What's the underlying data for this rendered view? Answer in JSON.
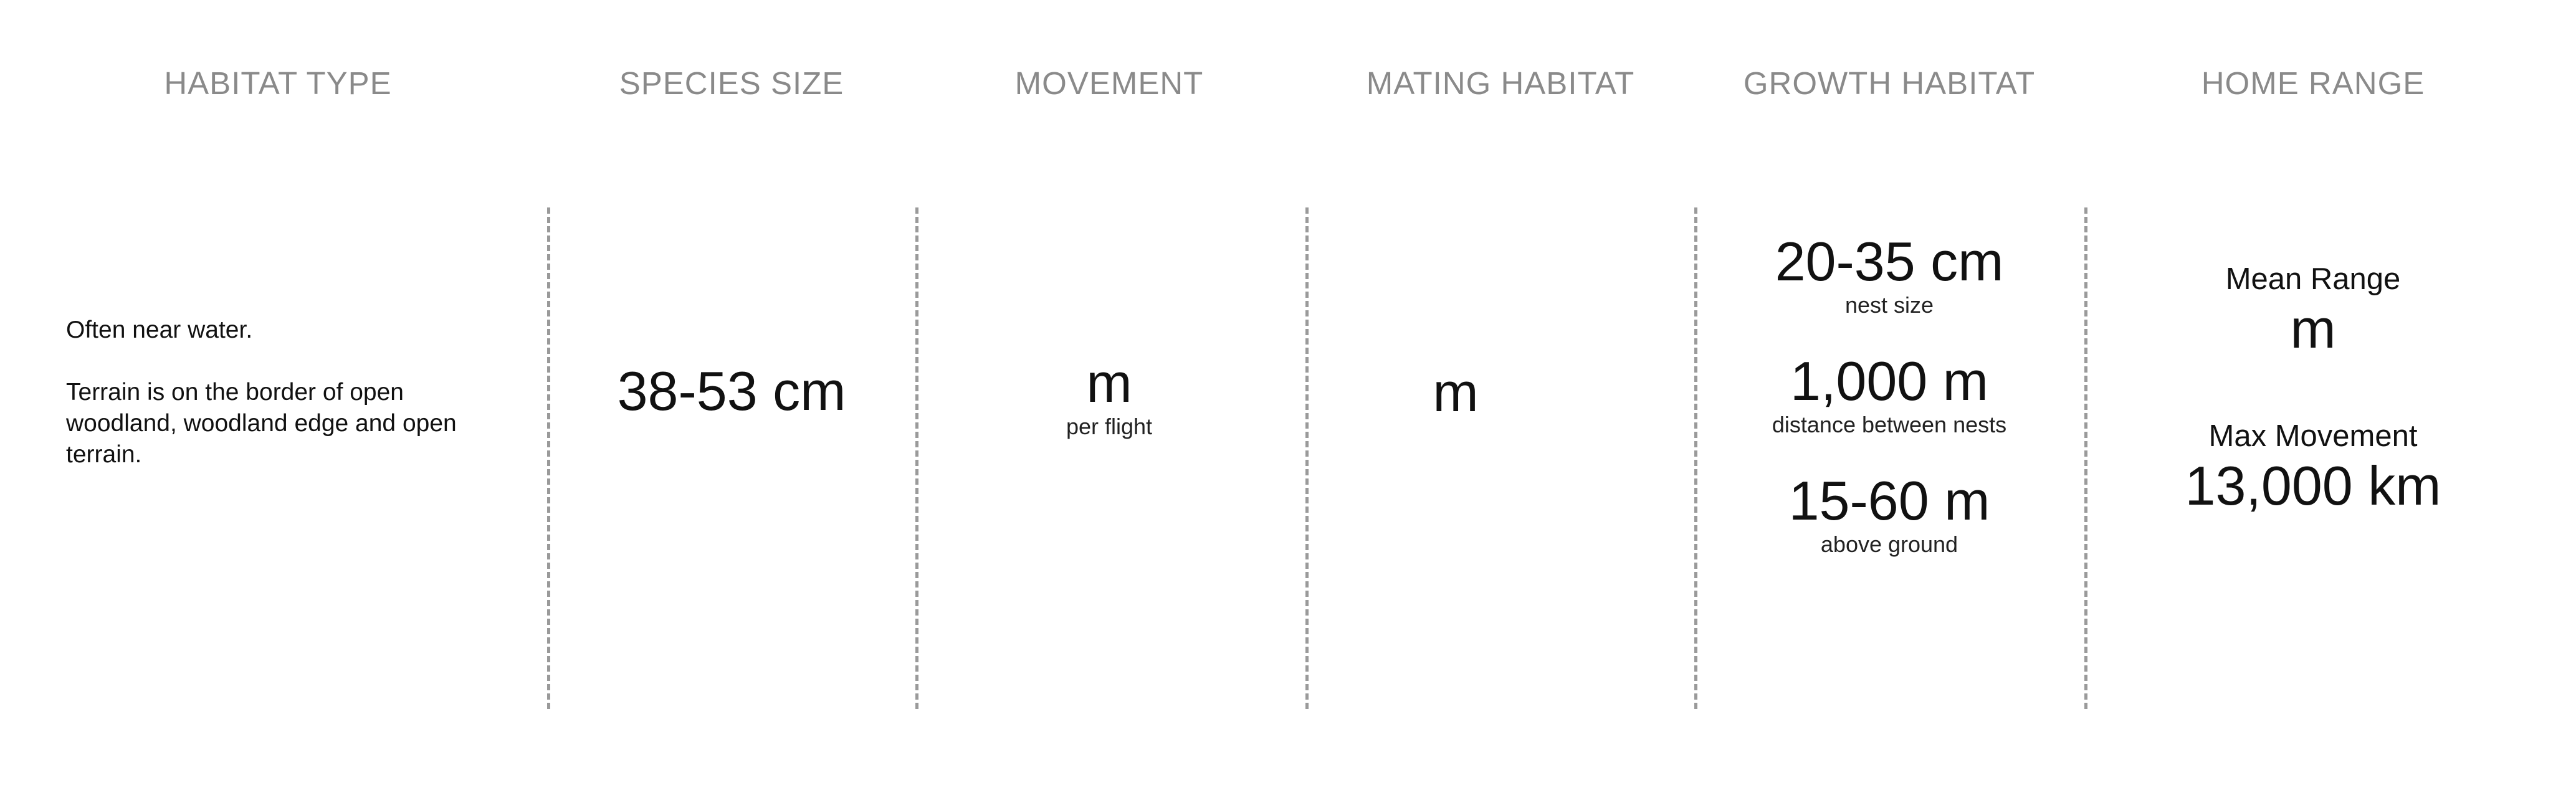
{
  "headers": {
    "habitat_type": "HABITAT TYPE",
    "species_size": "SPECIES SIZE",
    "movement": "MOVEMENT",
    "mating_habitat": "MATING HABITAT",
    "growth_habitat": "GROWTH HABITAT",
    "home_range": "HOME RANGE"
  },
  "habitat_type": {
    "line1": "Often near water.",
    "line2": "Terrain is on the border of open woodland, woodland edge and open terrain."
  },
  "species_size": {
    "value": "38-53 cm"
  },
  "movement": {
    "value": "m",
    "caption": "per flight"
  },
  "mating_habitat": {
    "value": "m"
  },
  "growth_habitat": {
    "items": [
      {
        "value": "20-35 cm",
        "caption": "nest size"
      },
      {
        "value": "1,000 m",
        "caption": "distance between nests"
      },
      {
        "value": "15-60 m",
        "caption": "above ground"
      }
    ]
  },
  "home_range": {
    "mean_label": "Mean Range",
    "mean_value": "m",
    "max_label": "Max Movement",
    "max_value": "13,000 km"
  }
}
